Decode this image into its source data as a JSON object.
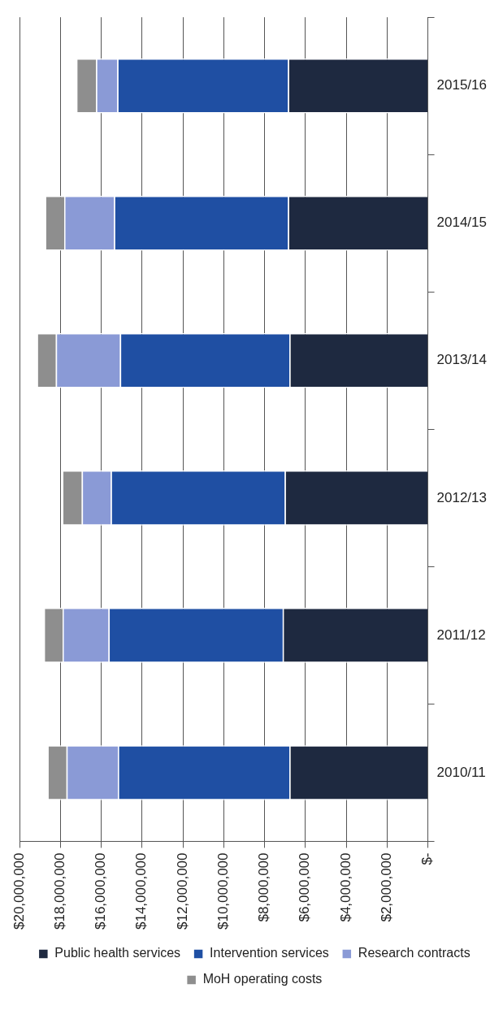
{
  "chart_data": {
    "type": "bar",
    "stacked": true,
    "orientation": "horizontal",
    "categories": [
      "2015/16",
      "2014/15",
      "2013/14",
      "2012/13",
      "2011/12",
      "2010/11"
    ],
    "series": [
      {
        "name": "Public health services",
        "color": "#1e2940",
        "values": [
          6850000,
          6850000,
          6780000,
          7010000,
          7110000,
          6780000
        ]
      },
      {
        "name": "Intervention services",
        "color": "#1f4fa3",
        "values": [
          8360000,
          8520000,
          8300000,
          8520000,
          8530000,
          8400000
        ]
      },
      {
        "name": "Research contracts",
        "color": "#8a9ad6",
        "values": [
          1040000,
          2440000,
          3140000,
          1420000,
          2250000,
          2520000
        ]
      },
      {
        "name": "MoH operating costs",
        "color": "#8e8e8e",
        "values": [
          970000,
          940000,
          930000,
          960000,
          920000,
          930000
        ]
      }
    ],
    "xlim": [
      20000000,
      0
    ],
    "xticks": [
      {
        "value": 0,
        "label": "$-"
      },
      {
        "value": 2000000,
        "label": "$2,000,000"
      },
      {
        "value": 4000000,
        "label": "$4,000,000"
      },
      {
        "value": 6000000,
        "label": "$6,000,000"
      },
      {
        "value": 8000000,
        "label": "$8,000,000"
      },
      {
        "value": 10000000,
        "label": "$10,000,000"
      },
      {
        "value": 12000000,
        "label": "$12,000,000"
      },
      {
        "value": 14000000,
        "label": "$14,000,000"
      },
      {
        "value": 16000000,
        "label": "$16,000,000"
      },
      {
        "value": 18000000,
        "label": "$18,000,000"
      },
      {
        "value": 20000000,
        "label": "$20,000,000"
      }
    ],
    "grid": "x",
    "legend": "bottom"
  }
}
